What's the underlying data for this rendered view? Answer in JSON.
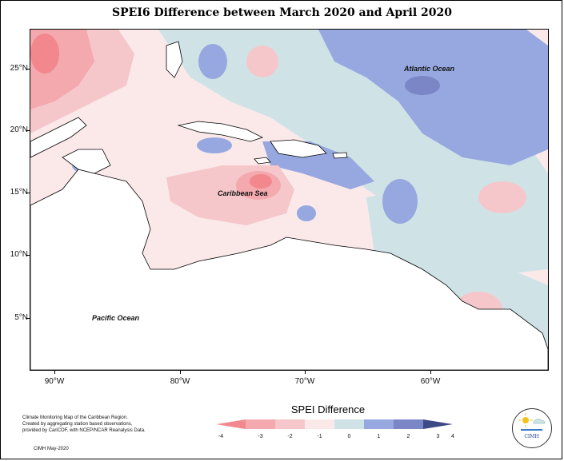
{
  "title": "SPEI6 Difference between March 2020 and April 2020",
  "map": {
    "lat_labels": [
      "25°N",
      "20°N",
      "15°N",
      "10°N",
      "5°N"
    ],
    "lon_labels": [
      "90°W",
      "80°W",
      "70°W",
      "60°W"
    ],
    "place_labels": {
      "atlantic": "Atlantic Ocean",
      "caribbean": "Caribbean Sea",
      "pacific": "Pacific Ocean"
    }
  },
  "legend": {
    "title": "SPEI Difference",
    "tick_labels": [
      "-4",
      "-3",
      "-2",
      "-1",
      "0",
      "1",
      "2",
      "3",
      "4"
    ],
    "bins": [
      {
        "from": -4,
        "to": -3,
        "color": "#f2878d"
      },
      {
        "from": -3,
        "to": -2,
        "color": "#f3a9ae"
      },
      {
        "from": -2,
        "to": -1,
        "color": "#f5c7ca"
      },
      {
        "from": -1,
        "to": 0,
        "color": "#fbe9ea"
      },
      {
        "from": 0,
        "to": 1,
        "color": "#cfe3e6"
      },
      {
        "from": 1,
        "to": 2,
        "color": "#96a8df"
      },
      {
        "from": 2,
        "to": 3,
        "color": "#7a86c6"
      },
      {
        "from": 3,
        "to": 4,
        "color": "#3c4a86"
      }
    ]
  },
  "credits": {
    "line1": "Climate Monitoring Map of the Caribbean Region.",
    "line2": "Created by aggregating station based observations,",
    "line3": "provided by CariCOF, with NCEP/NCAR Reanalysis Data."
  },
  "footer": "CIMH May-2020",
  "logo_text": "CIMH"
}
